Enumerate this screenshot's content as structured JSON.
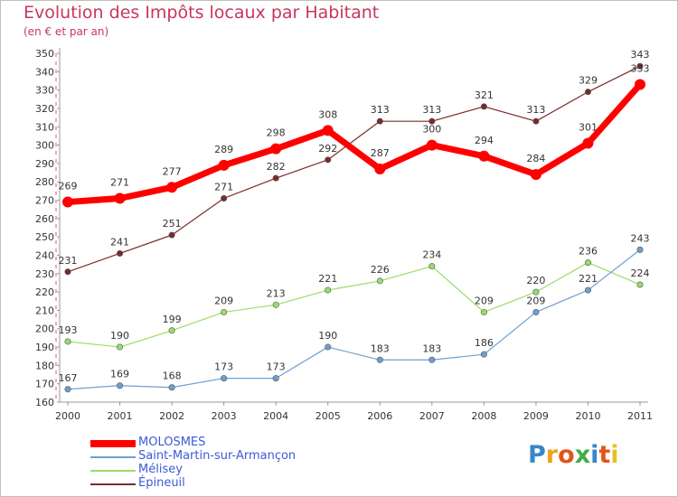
{
  "header": {
    "title": "Evolution des Impôts locaux par Habitant",
    "subtitle": "(en € et par an)"
  },
  "brand": {
    "letters": [
      "P",
      "r",
      "o",
      "x",
      "i",
      "t",
      "i"
    ],
    "colors": [
      "#3a86c8",
      "#f0a020",
      "#e2541a",
      "#3fae45",
      "#3a86c8",
      "#e2541a",
      "#e8c020"
    ]
  },
  "chart_data": {
    "type": "line",
    "x": [
      "2000",
      "2001",
      "2002",
      "2003",
      "2004",
      "2005",
      "2006",
      "2007",
      "2008",
      "2009",
      "2010",
      "2011"
    ],
    "ylim": [
      160,
      350
    ],
    "yticks": [
      160,
      170,
      180,
      190,
      200,
      210,
      220,
      230,
      240,
      250,
      260,
      270,
      280,
      290,
      300,
      310,
      320,
      330,
      340,
      350
    ],
    "grid": false,
    "legend": "bottom-left",
    "series": [
      {
        "name": "MOLOSMES",
        "color": "#ff0000",
        "values": [
          269,
          271,
          277,
          289,
          298,
          308,
          287,
          300,
          294,
          284,
          301,
          333
        ],
        "labels": [
          "269",
          "271",
          "277",
          "289",
          "298",
          "308",
          "287",
          "300",
          "294",
          "284",
          "301",
          "333"
        ]
      },
      {
        "name": "Saint-Martin-sur-Armançon",
        "color": "#6e9fd0",
        "values": [
          167,
          169,
          168,
          173,
          173,
          190,
          183,
          183,
          186,
          209,
          221,
          243
        ],
        "labels": [
          "167",
          "169",
          "168",
          "173",
          "173",
          "190",
          "183",
          "183",
          "186",
          "209",
          "221",
          "243"
        ]
      },
      {
        "name": "Mélisey",
        "color": "#99dd66",
        "values": [
          193,
          190,
          199,
          209,
          213,
          221,
          226,
          234,
          209,
          220,
          236,
          224
        ],
        "labels": [
          "193",
          "190",
          "199",
          "209",
          "213",
          "221",
          "226",
          "234",
          "209",
          "220",
          "236",
          "224"
        ]
      },
      {
        "name": "Épineuil",
        "color": "#7a2a2a",
        "values": [
          231,
          241,
          251,
          271,
          282,
          292,
          313,
          313,
          321,
          313,
          329,
          343
        ],
        "labels": [
          "231",
          "241",
          "251",
          "271",
          "282",
          "292",
          "313",
          "313",
          "321",
          "313",
          "329",
          "343"
        ]
      }
    ]
  }
}
